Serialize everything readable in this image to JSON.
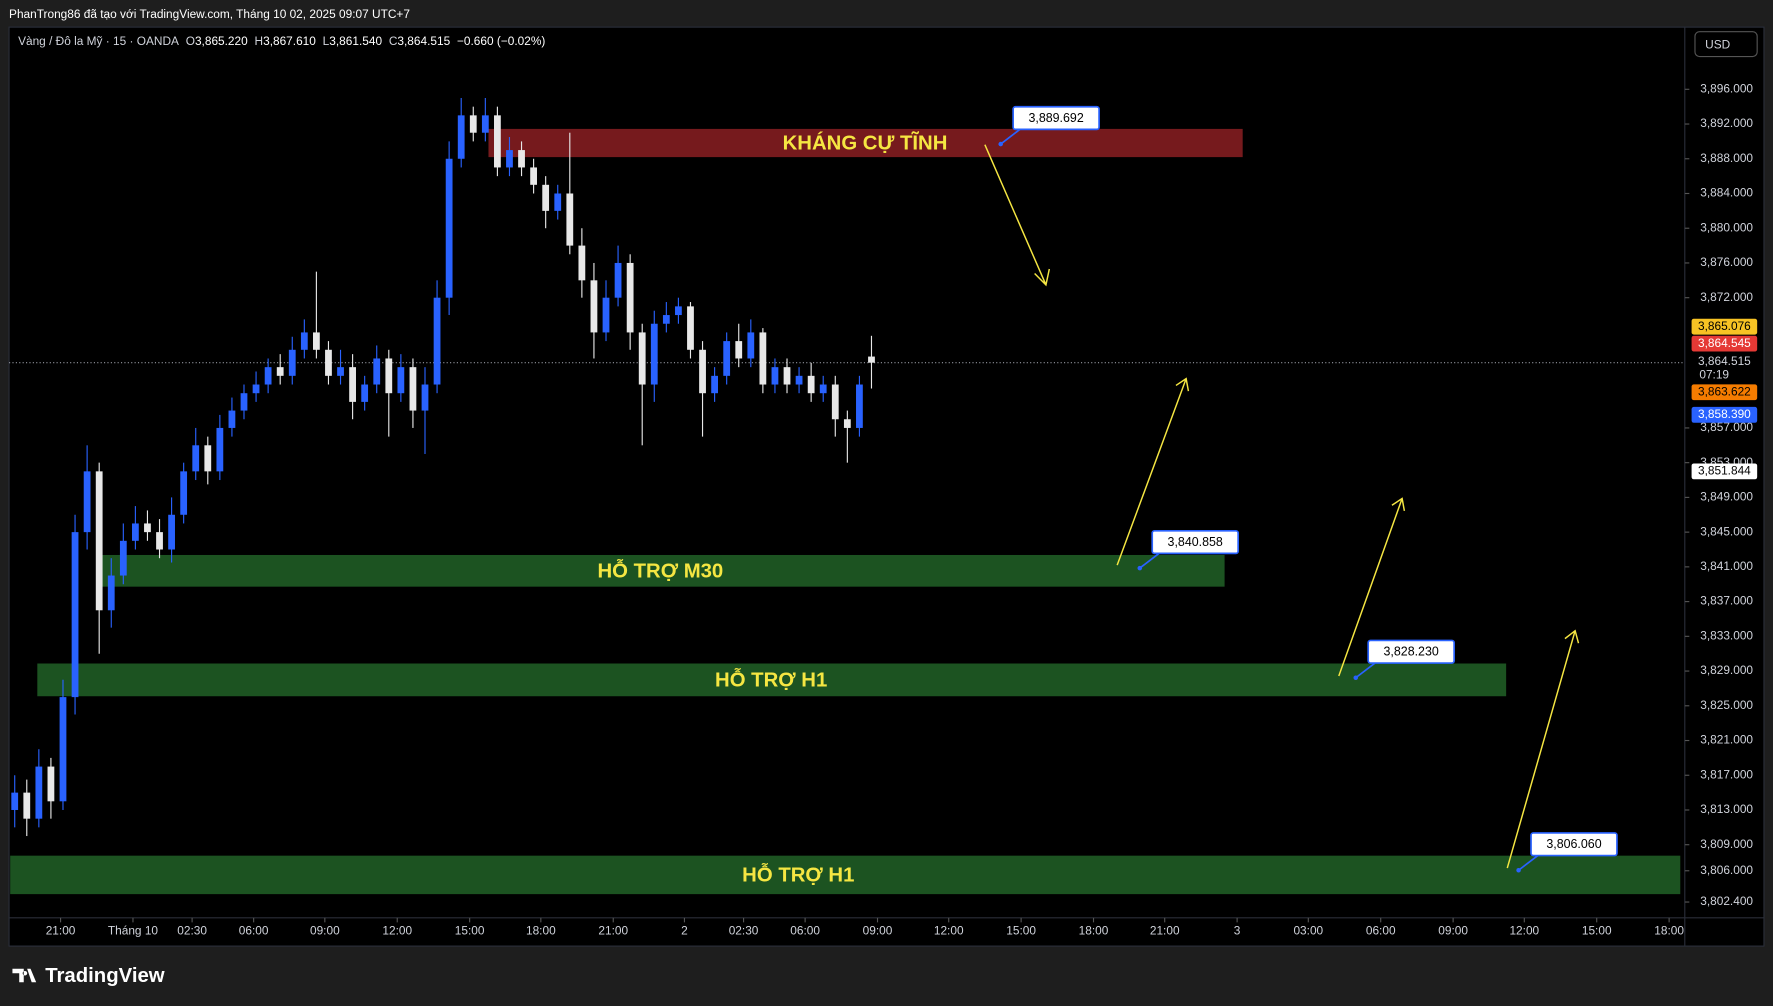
{
  "header": {
    "credit": "PhanTrong86 đã tạo với TradingView.com, Tháng 10 02, 2025 09:07 UTC+7",
    "currency": "USD"
  },
  "legend": {
    "symbol": "Vàng / Đô la Mỹ · 15 · OANDA",
    "ohlc": [
      {
        "key": "O",
        "value": "3,865.220"
      },
      {
        "key": "H",
        "value": "3,867.610"
      },
      {
        "key": "L",
        "value": "3,861.540"
      },
      {
        "key": "C",
        "value": "3,864.515"
      }
    ],
    "change": "−0.660 (−0.02%)"
  },
  "footer": {
    "brand": "TradingView"
  },
  "chart_data": {
    "type": "candlestick",
    "up_color": "#2962ff",
    "down_color": "#e8e8e8",
    "open": [
      3813,
      3815,
      3812,
      3818,
      3814,
      3826,
      3845,
      3852,
      3836,
      3840,
      3844,
      3846,
      3845,
      3843,
      3847,
      3852,
      3855,
      3852,
      3857,
      3859,
      3861,
      3862,
      3864,
      3863,
      3866,
      3868,
      3866,
      3863,
      3864,
      3860,
      3862,
      3865,
      3861,
      3864,
      3859,
      3862,
      3872,
      3888,
      3893,
      3891,
      3893,
      3887,
      3889,
      3887,
      3885,
      3882,
      3884,
      3878,
      3874,
      3868,
      3872,
      3876,
      3868,
      3862,
      3869,
      3870,
      3871,
      3866,
      3861,
      3863,
      3867,
      3865,
      3868,
      3862,
      3864,
      3862,
      3863,
      3861,
      3862,
      3858,
      3857,
      3865.22
    ],
    "high": [
      3817,
      3816.5,
      3820,
      3819,
      3828,
      3847,
      3855,
      3853,
      3842,
      3846,
      3848,
      3847.5,
      3846.5,
      3849,
      3853,
      3857,
      3856,
      3858.5,
      3860.5,
      3862,
      3863.5,
      3865,
      3865.5,
      3867.5,
      3869.5,
      3875,
      3867,
      3866,
      3865.5,
      3863,
      3866.5,
      3866,
      3865.5,
      3865,
      3864,
      3874,
      3890,
      3895,
      3894,
      3895,
      3894,
      3890.5,
      3890,
      3888,
      3886,
      3885,
      3891,
      3880,
      3876,
      3874,
      3878,
      3877,
      3869,
      3870.5,
      3871.5,
      3872,
      3871.5,
      3867,
      3864,
      3868,
      3869,
      3869.5,
      3868.5,
      3865,
      3865,
      3864,
      3864.5,
      3863,
      3863,
      3859,
      3863,
      3867.61
    ],
    "low": [
      3811,
      3810,
      3811,
      3812,
      3813,
      3824,
      3843,
      3831,
      3834,
      3839,
      3843,
      3844,
      3842,
      3841.5,
      3846,
      3851,
      3850.5,
      3851,
      3856,
      3858,
      3860,
      3861,
      3862,
      3862,
      3865,
      3865,
      3862,
      3862,
      3858,
      3859,
      3861,
      3856,
      3860,
      3857,
      3854,
      3861,
      3870,
      3887,
      3890,
      3890,
      3886,
      3886,
      3886,
      3884,
      3880,
      3881,
      3877,
      3872,
      3865,
      3867,
      3871,
      3866,
      3855,
      3860,
      3868,
      3869,
      3865,
      3856,
      3860,
      3862,
      3864,
      3864,
      3861,
      3861,
      3861,
      3861,
      3860,
      3860,
      3856,
      3853,
      3856,
      3861.54
    ],
    "close": [
      3815,
      3812,
      3818,
      3814,
      3826,
      3845,
      3852,
      3836,
      3840,
      3844,
      3846,
      3845,
      3843,
      3847,
      3852,
      3855,
      3852,
      3857,
      3859,
      3861,
      3862,
      3864,
      3863,
      3866,
      3868,
      3866,
      3863,
      3864,
      3860,
      3862,
      3865,
      3861,
      3864,
      3859,
      3862,
      3872,
      3888,
      3893,
      3891,
      3893,
      3887,
      3889,
      3887,
      3885,
      3882,
      3884,
      3878,
      3874,
      3868,
      3872,
      3876,
      3868,
      3862,
      3869,
      3870,
      3871,
      3866,
      3861,
      3863,
      3867,
      3865,
      3868,
      3862,
      3864,
      3862,
      3863,
      3861,
      3862,
      3858,
      3857,
      3862,
      3864.515
    ],
    "xlim": [
      -0.47,
      138.4
    ],
    "xticks": [
      {
        "value": 3.8,
        "label": "21:00"
      },
      {
        "value": 9.8,
        "label": "Tháng 10"
      },
      {
        "value": 14.7,
        "label": "02:30"
      },
      {
        "value": 19.8,
        "label": "06:00"
      },
      {
        "value": 25.7,
        "label": "09:00"
      },
      {
        "value": 31.7,
        "label": "12:00"
      },
      {
        "value": 37.7,
        "label": "15:00"
      },
      {
        "value": 43.6,
        "label": "18:00"
      },
      {
        "value": 49.6,
        "label": "21:00"
      },
      {
        "value": 55.5,
        "label": "2"
      },
      {
        "value": 60.4,
        "label": "02:30"
      },
      {
        "value": 65.5,
        "label": "06:00"
      },
      {
        "value": 71.5,
        "label": "09:00"
      },
      {
        "value": 77.4,
        "label": "12:00"
      },
      {
        "value": 83.4,
        "label": "15:00"
      },
      {
        "value": 89.4,
        "label": "18:00"
      },
      {
        "value": 95.3,
        "label": "21:00"
      },
      {
        "value": 101.3,
        "label": "3"
      },
      {
        "value": 107.2,
        "label": "03:00"
      },
      {
        "value": 113.2,
        "label": "06:00"
      },
      {
        "value": 119.2,
        "label": "09:00"
      },
      {
        "value": 125.1,
        "label": "12:00"
      },
      {
        "value": 131.1,
        "label": "15:00"
      },
      {
        "value": 137.1,
        "label": "18:00"
      }
    ],
    "ylim": [
      3800.58,
      3903.16
    ],
    "yticks": [
      {
        "value": 3896,
        "label": "3,896.000"
      },
      {
        "value": 3892,
        "label": "3,892.000"
      },
      {
        "value": 3888,
        "label": "3,888.000"
      },
      {
        "value": 3884,
        "label": "3,884.000"
      },
      {
        "value": 3880,
        "label": "3,880.000"
      },
      {
        "value": 3876,
        "label": "3,876.000"
      },
      {
        "value": 3872,
        "label": "3,872.000"
      },
      {
        "value": 3857,
        "label": "3,857.000"
      },
      {
        "value": 3853,
        "label": "3,853.000"
      },
      {
        "value": 3849,
        "label": "3,849.000"
      },
      {
        "value": 3845,
        "label": "3,845.000"
      },
      {
        "value": 3841,
        "label": "3,841.000"
      },
      {
        "value": 3837,
        "label": "3,837.000"
      },
      {
        "value": 3833,
        "label": "3,833.000"
      },
      {
        "value": 3829,
        "label": "3,829.000"
      },
      {
        "value": 3825,
        "label": "3,825.000"
      },
      {
        "value": 3821,
        "label": "3,821.000"
      },
      {
        "value": 3817,
        "label": "3,817.000"
      },
      {
        "value": 3813,
        "label": "3,813.000"
      },
      {
        "value": 3809,
        "label": "3,809.000"
      },
      {
        "value": 3806,
        "label": "3,806.000"
      },
      {
        "value": 3802.4,
        "label": "3,802.400"
      }
    ],
    "zones": [
      {
        "label": "KHÁNG CỰ TĨNH",
        "range": [
          3888.19,
          3891.44
        ],
        "color": "#801c1f"
      },
      {
        "label": "HỖ TRỢ M30",
        "range": [
          3838.72,
          3842.37
        ],
        "color": "#1e5a24"
      },
      {
        "label": "HỖ TRỢ H1",
        "range": [
          3826.1,
          3829.87
        ],
        "color": "#1e5a24"
      },
      {
        "label": "HỖ TRỢ H1",
        "range": [
          3803.31,
          3807.74
        ],
        "color": "#1e5a24"
      }
    ],
    "callouts": [
      {
        "value": 3889.692,
        "label": "3,889.692"
      },
      {
        "value": 3840.858,
        "label": "3,840.858"
      },
      {
        "value": 3828.23,
        "label": "3,828.230"
      },
      {
        "value": 3806.06,
        "label": "3,806.060"
      }
    ],
    "price_tags": [
      {
        "label": "3,865.076",
        "color": "#f7c324",
        "text": "#000000"
      },
      {
        "label": "3,864.545",
        "color": "#e53935",
        "text": "#ffffff"
      },
      {
        "label": "3,864.515",
        "color": "#000000",
        "text": "#d1d4dc"
      },
      {
        "label": "3,863.622",
        "color": "#f57c00",
        "text": "#000000"
      },
      {
        "label": "3,858.390",
        "color": "#2962ff",
        "text": "#ffffff"
      },
      {
        "label": "3,851.844",
        "color": "#ffffff",
        "text": "#000000"
      }
    ],
    "countdown": "07:19"
  }
}
